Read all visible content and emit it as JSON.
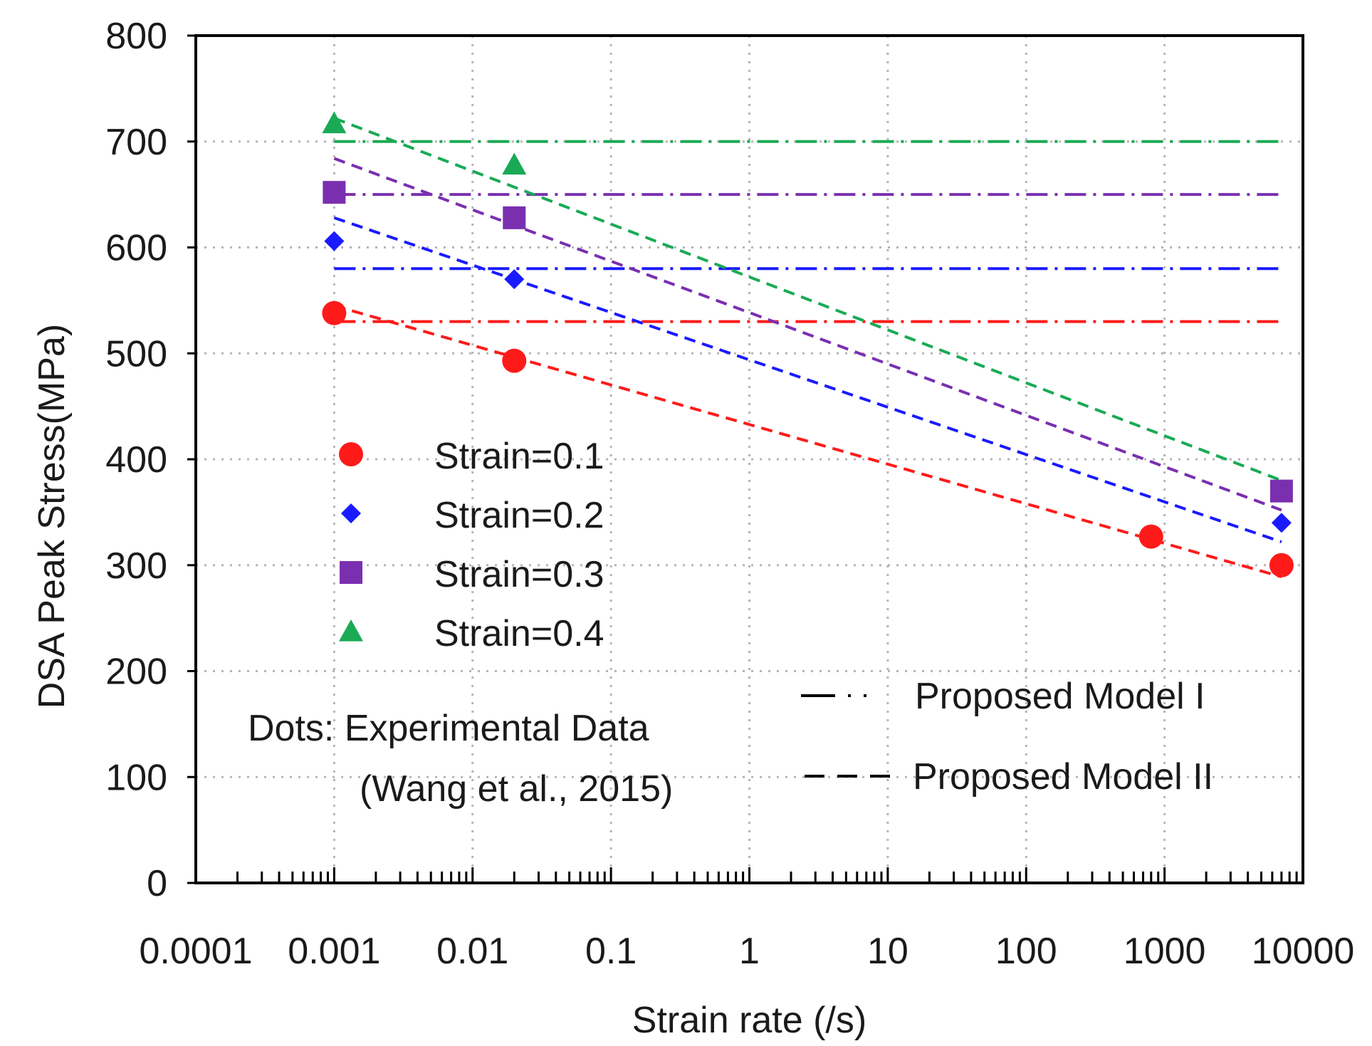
{
  "chart_data": {
    "type": "scatter",
    "xscale": "log",
    "xlabel": "Strain rate (/s)",
    "ylabel": "DSA Peak Stress(MPa)",
    "xlim": [
      0.0001,
      10000
    ],
    "ylim": [
      0,
      800
    ],
    "x_tick_values": [
      0.0001,
      0.001,
      0.01,
      0.1,
      1,
      10,
      100,
      1000,
      10000
    ],
    "x_tick_labels": [
      "0.0001",
      "0.001",
      "0.01",
      "0.1",
      "1",
      "10",
      "100",
      "1000",
      "10000"
    ],
    "y_tick_values": [
      0,
      100,
      200,
      300,
      400,
      500,
      600,
      700,
      800
    ],
    "y_tick_labels": [
      "0",
      "100",
      "200",
      "300",
      "400",
      "500",
      "600",
      "700",
      "800"
    ],
    "grid": true,
    "series": [
      {
        "name": "Strain=0.1",
        "color": "#ff1a1a",
        "marker": "circle",
        "points": [
          [
            0.001,
            538
          ],
          [
            0.02,
            493
          ],
          [
            800,
            327
          ],
          [
            7000,
            300
          ]
        ],
        "model_I": {
          "x": [
            0.001,
            7000
          ],
          "y": [
            530,
            530
          ]
        },
        "model_II": {
          "x": [
            0.001,
            7000
          ],
          "y": [
            545,
            289
          ]
        }
      },
      {
        "name": "Strain=0.2",
        "color": "#1a1aff",
        "marker": "diamond",
        "points": [
          [
            0.001,
            606
          ],
          [
            0.02,
            570
          ],
          [
            7000,
            340
          ]
        ],
        "model_I": {
          "x": [
            0.001,
            7000
          ],
          "y": [
            580,
            580
          ]
        },
        "model_II": {
          "x": [
            0.001,
            7000
          ],
          "y": [
            628,
            322
          ]
        }
      },
      {
        "name": "Strain=0.3",
        "color": "#7a2fb0",
        "marker": "square",
        "points": [
          [
            0.001,
            652
          ],
          [
            0.02,
            628
          ],
          [
            7000,
            370
          ]
        ],
        "model_I": {
          "x": [
            0.001,
            7000
          ],
          "y": [
            650,
            650
          ]
        },
        "model_II": {
          "x": [
            0.001,
            7000
          ],
          "y": [
            684,
            352
          ]
        }
      },
      {
        "name": "Strain=0.4",
        "color": "#1aaa55",
        "marker": "triangle",
        "points": [
          [
            0.001,
            717
          ],
          [
            0.02,
            678
          ]
        ],
        "model_I": {
          "x": [
            0.001,
            7000
          ],
          "y": [
            700,
            700
          ]
        },
        "model_II": {
          "x": [
            0.001,
            7000
          ],
          "y": [
            722,
            380
          ]
        }
      }
    ],
    "legend": {
      "position": "left-middle",
      "entries": [
        "Strain=0.1",
        "Strain=0.2",
        "Strain=0.3",
        "Strain=0.4"
      ]
    },
    "line_legend": {
      "position": "bottom-right",
      "entries": [
        "Proposed Model I",
        "Proposed Model II"
      ]
    },
    "annotation": {
      "line1": "Dots: Experimental  Data",
      "line2": "(Wang et al., 2015)"
    }
  }
}
